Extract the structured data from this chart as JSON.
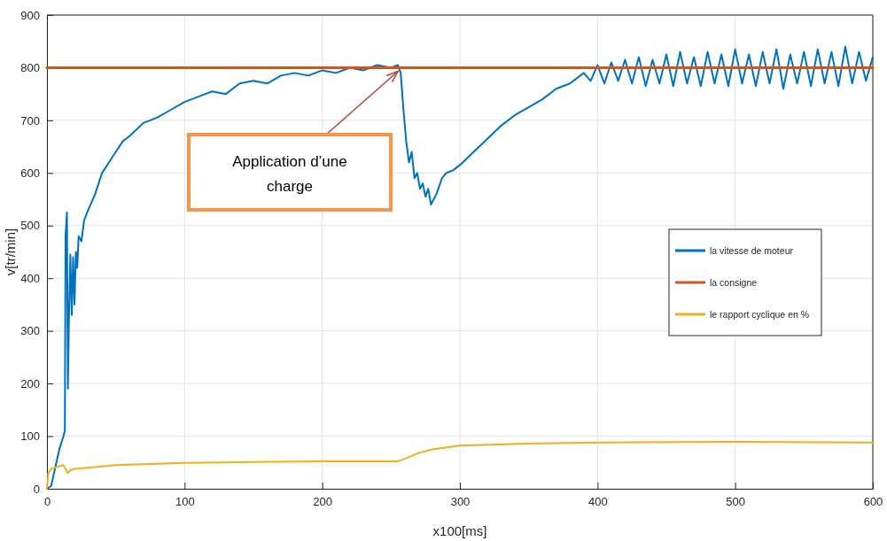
{
  "chart_data": {
    "type": "line",
    "xlabel": "x100[ms]",
    "ylabel": "v[tr/min]",
    "xlim": [
      0,
      600
    ],
    "ylim": [
      0,
      900
    ],
    "xticks": [
      0,
      100,
      200,
      300,
      400,
      500,
      600
    ],
    "yticks": [
      0,
      100,
      200,
      300,
      400,
      500,
      600,
      700,
      800,
      900
    ],
    "grid": true,
    "legend": "right",
    "line_style": "solid",
    "marker": "none",
    "annotations": [
      {
        "text": "Application d’une charge",
        "x": 257,
        "y": 800
      }
    ],
    "series": [
      {
        "name": "la vitesse de moteur",
        "color": "#0072bd",
        "x": [
          0,
          3,
          6,
          9,
          12,
          13,
          13.5,
          14.5,
          15.2,
          16,
          17,
          18,
          19,
          20,
          21,
          22,
          23,
          25,
          27,
          30,
          35,
          40,
          45,
          50,
          55,
          60,
          70,
          80,
          90,
          100,
          110,
          120,
          130,
          140,
          150,
          160,
          170,
          180,
          190,
          200,
          210,
          220,
          230,
          240,
          250,
          255,
          257,
          259,
          261,
          263,
          265,
          267,
          269,
          271,
          273,
          275,
          277,
          279,
          281,
          283,
          285,
          287,
          290,
          295,
          300,
          310,
          320,
          330,
          340,
          350,
          360,
          370,
          380,
          390,
          395,
          400,
          405,
          410,
          415,
          420,
          425,
          430,
          435,
          440,
          445,
          450,
          455,
          460,
          465,
          470,
          475,
          480,
          485,
          490,
          495,
          500,
          505,
          510,
          515,
          520,
          525,
          530,
          535,
          540,
          545,
          550,
          555,
          560,
          565,
          570,
          575,
          580,
          585,
          590,
          595,
          600
        ],
        "values": [
          0,
          5,
          40,
          75,
          100,
          110,
          480,
          525,
          190,
          330,
          445,
          330,
          440,
          350,
          450,
          420,
          480,
          470,
          510,
          530,
          560,
          600,
          620,
          640,
          660,
          670,
          695,
          705,
          720,
          735,
          745,
          755,
          750,
          770,
          775,
          770,
          785,
          790,
          785,
          795,
          790,
          800,
          795,
          805,
          800,
          805,
          790,
          720,
          660,
          620,
          640,
          590,
          600,
          570,
          580,
          555,
          570,
          540,
          550,
          560,
          575,
          590,
          600,
          605,
          615,
          640,
          665,
          690,
          710,
          725,
          740,
          760,
          770,
          790,
          775,
          805,
          770,
          810,
          775,
          815,
          770,
          820,
          765,
          815,
          770,
          825,
          765,
          830,
          770,
          820,
          765,
          830,
          770,
          825,
          765,
          835,
          770,
          825,
          765,
          830,
          770,
          835,
          760,
          825,
          770,
          830,
          765,
          835,
          770,
          830,
          765,
          840,
          770,
          830,
          775,
          820
        ]
      },
      {
        "name": "la consigne",
        "color": "#d95319",
        "x": [
          0,
          600
        ],
        "values": [
          800,
          800
        ]
      },
      {
        "name": "le rapport cyclique en %",
        "color": "#edb120",
        "x": [
          0,
          1,
          3,
          8,
          12,
          15,
          17,
          20,
          30,
          50,
          100,
          150,
          200,
          255,
          260,
          270,
          280,
          300,
          350,
          400,
          500,
          600
        ],
        "values": [
          0,
          30,
          38,
          42,
          45,
          30,
          35,
          38,
          40,
          45,
          49,
          51,
          52,
          52,
          57,
          68,
          75,
          82,
          86,
          88,
          89,
          88
        ]
      }
    ]
  }
}
